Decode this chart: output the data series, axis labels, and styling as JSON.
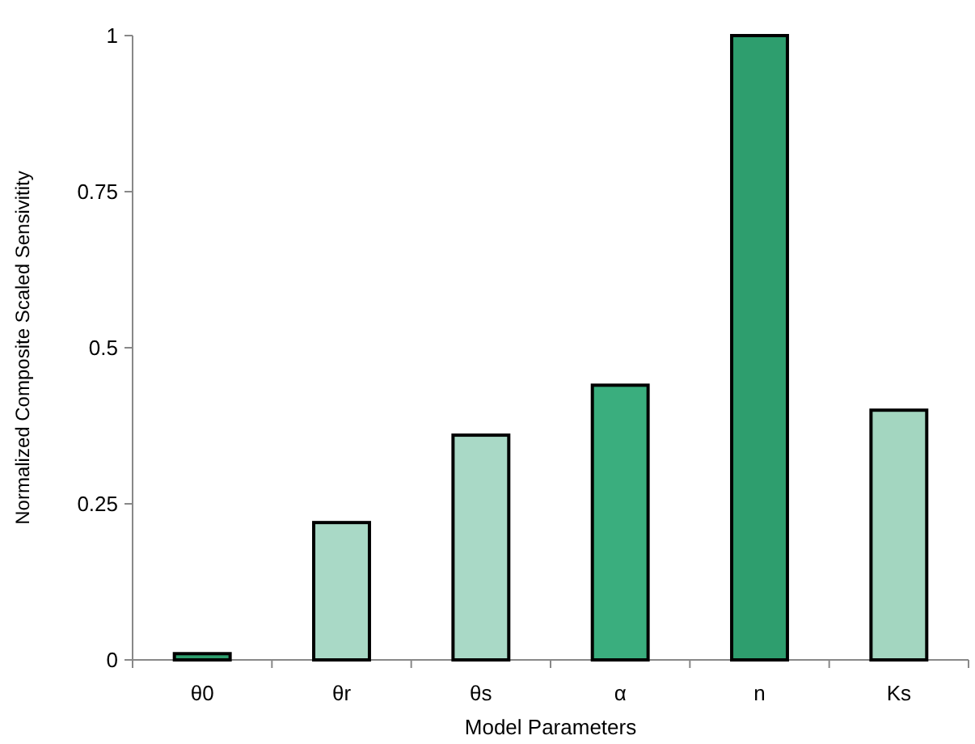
{
  "chart_data": {
    "type": "bar",
    "xlabel": "Model Parameters",
    "ylabel": "Normalized Composite Scaled  Sensivitity",
    "categories": [
      "θ0",
      "θr",
      "θs",
      "α",
      "n",
      "Ks"
    ],
    "values": [
      0.01,
      0.22,
      0.36,
      0.44,
      1,
      0.4
    ],
    "colors": [
      "#2e9e6e",
      "#a9d9c6",
      "#a9d9c6",
      "#3aae7e",
      "#2e9e6e",
      "#a3d6c0"
    ],
    "ylim": [
      0,
      1
    ],
    "yticks": [
      0,
      0.25,
      0.5,
      0.75,
      1
    ],
    "grid": false
  }
}
